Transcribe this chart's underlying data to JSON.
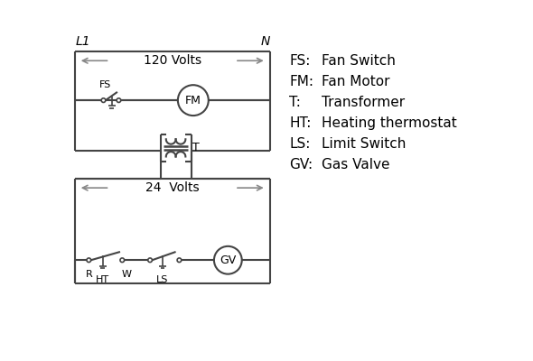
{
  "bg_color": "#ffffff",
  "line_color": "#444444",
  "arrow_color": "#888888",
  "text_color": "#000000",
  "legend_items": [
    [
      "FS:",
      "Fan Switch"
    ],
    [
      "FM:",
      "Fan Motor"
    ],
    [
      "T:",
      "Transformer"
    ],
    [
      "HT:",
      "Heating thermostat"
    ],
    [
      "LS:",
      "Limit Switch"
    ],
    [
      "GV:",
      "Gas Valve"
    ]
  ],
  "L1_label": "L1",
  "N_label": "N",
  "volts120_label": "120 Volts",
  "volts24_label": "24  Volts",
  "T_label": "T",
  "R_label": "R",
  "W_label": "W",
  "HT_label": "HT",
  "LS_label": "LS",
  "FS_label": "FS",
  "FM_label": "FM",
  "GV_label": "GV"
}
